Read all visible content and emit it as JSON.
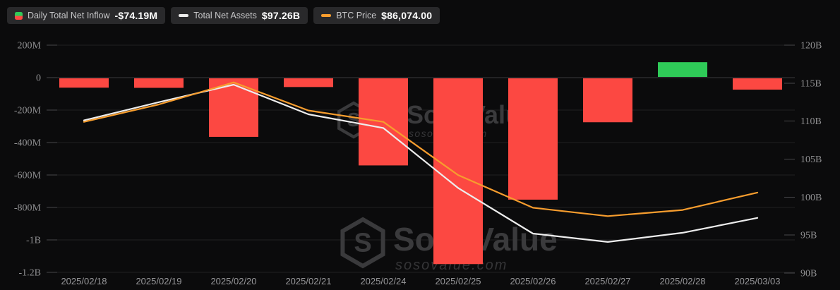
{
  "legend": {
    "items": [
      {
        "label": "Daily Total Net Inflow",
        "value": "-$74.19M",
        "icon": "inflow-split-square-icon",
        "icon_colors": [
          "#2fca58",
          "#fc4842"
        ]
      },
      {
        "label": "Total Net Assets",
        "value": "$97.26B",
        "icon": "net-assets-line-dash-icon",
        "icon_colors": [
          "#ededed"
        ]
      },
      {
        "label": "BTC Price",
        "value": "$86,074.00",
        "icon": "btc-price-line-dash-icon",
        "icon_colors": [
          "#f79d2e"
        ]
      }
    ]
  },
  "watermark": {
    "brand": "SosoValue",
    "domain": "sosovalue.com"
  },
  "colors": {
    "background": "#0b0b0c",
    "bar_negative": "#fc4842",
    "bar_positive": "#2fca58",
    "net_assets_line": "#ededed",
    "btc_price_line": "#f79d2e",
    "gridline": "#202022",
    "zero_line": "#3a3a3d",
    "tick": "#47474a",
    "axis_label": "#909092",
    "watermark": "#3a3a3c"
  },
  "chart_data": {
    "type": "combo-bar-line",
    "title": "",
    "grid": "horizontal",
    "legend_position": "top-left",
    "categories": [
      "2025/02/18",
      "2025/02/19",
      "2025/02/20",
      "2025/02/21",
      "2025/02/24",
      "2025/02/25",
      "2025/02/26",
      "2025/02/27",
      "2025/02/28",
      "2025/03/03"
    ],
    "left_axis": {
      "tick_labels": [
        "200M",
        "0",
        "-200M",
        "-400M",
        "-600M",
        "-800M",
        "-1B",
        "-1.2B"
      ],
      "tick_values": [
        200,
        0,
        -200,
        -400,
        -600,
        -800,
        -1000,
        -1200
      ],
      "range": [
        -1200,
        200
      ],
      "unit": "USD millions"
    },
    "right_axis": {
      "tick_labels": [
        "120B",
        "115B",
        "110B",
        "105B",
        "100B",
        "95B",
        "90B"
      ],
      "tick_values": [
        120,
        115,
        110,
        105,
        100,
        95,
        90
      ],
      "range": [
        90,
        120
      ],
      "unit": "USD billions"
    },
    "series": [
      {
        "name": "Daily Total Net Inflow",
        "type": "bar",
        "axis": "left",
        "unit": "USD millions",
        "values": [
          -62,
          -63,
          -365,
          -58,
          -541,
          -1149,
          -752,
          -275,
          95,
          -74.19
        ]
      },
      {
        "name": "Total Net Assets",
        "type": "line",
        "axis": "right",
        "unit": "USD billions",
        "latest_value_label": "$97.26B",
        "values": [
          110.1,
          112.5,
          114.8,
          110.9,
          109.1,
          101.2,
          95.2,
          94.1,
          95.3,
          97.26
        ]
      },
      {
        "name": "BTC Price",
        "type": "line",
        "axis": "hidden (plotted here as right-axis billion-equivalents)",
        "latest_value_label": "$86,074.00",
        "values": [
          109.9,
          112.2,
          115.1,
          111.4,
          109.9,
          102.9,
          98.6,
          97.5,
          98.3,
          100.6
        ]
      }
    ]
  }
}
